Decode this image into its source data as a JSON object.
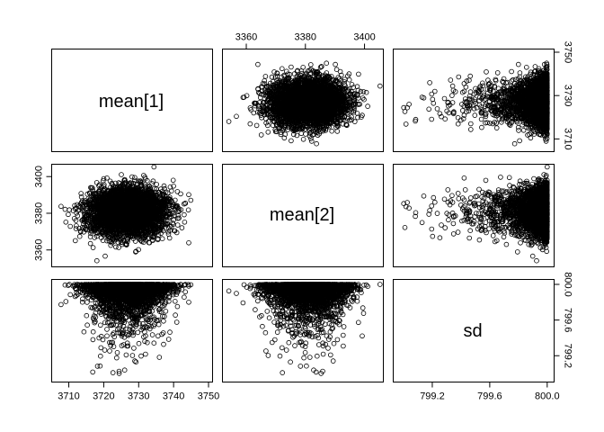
{
  "chart_data": {
    "type": "scatter",
    "plot_kind": "pairs scatterplot matrix",
    "variables": [
      {
        "name": "mean[1]",
        "range": [
          3706,
          3750
        ],
        "ticks": [
          3710,
          3720,
          3730,
          3740,
          3750
        ],
        "label_sides": [
          "bottom",
          "right"
        ],
        "right_ticks": [
          3710,
          3730,
          3750
        ],
        "approx_mean": 3727,
        "approx_sd": 5.5
      },
      {
        "name": "mean[2]",
        "range": [
          3353,
          3405
        ],
        "ticks": [
          3360,
          3380,
          3400
        ],
        "label_sides": [
          "top",
          "left"
        ],
        "approx_mean": 3381,
        "approx_sd": 6.5
      },
      {
        "name": "sd",
        "range": [
          798.95,
          800.02
        ],
        "ticks": [
          799.2,
          799.6,
          800.0
        ],
        "tick_labels": [
          "799.2",
          "799.6",
          "800.0"
        ],
        "label_sides": [
          "bottom",
          "right"
        ],
        "approx_upper_bound": 800.0,
        "distribution": "concentrated near upper bound 800.0, long tail toward 799.0"
      }
    ],
    "approx_points_per_panel": 4000,
    "marker": "open circle",
    "grid": false,
    "legend": "none"
  }
}
